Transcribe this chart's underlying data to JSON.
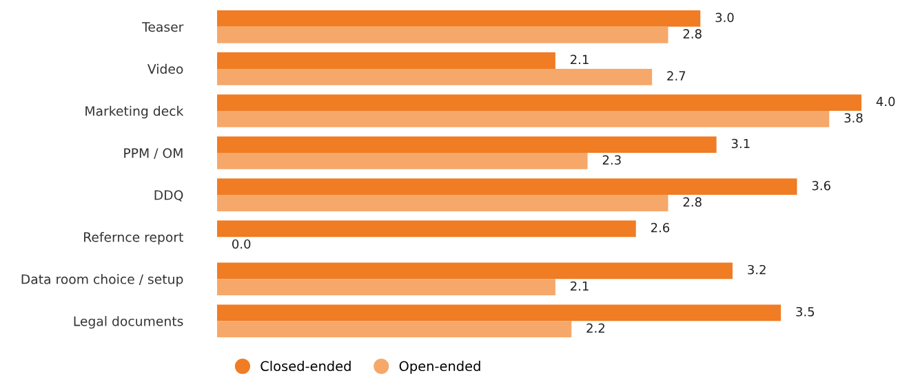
{
  "chart_data": {
    "type": "bar",
    "orientation": "horizontal",
    "categories": [
      "Teaser",
      "Video",
      "Marketing deck",
      "PPM / OM",
      "DDQ",
      "Refernce report",
      "Data room choice / setup",
      "Legal documents"
    ],
    "series": [
      {
        "name": "Closed-ended",
        "color": "#f07c24",
        "values": [
          3.0,
          2.1,
          4.0,
          3.1,
          3.6,
          2.6,
          3.2,
          3.5
        ],
        "value_labels": [
          "3.0",
          "2.1",
          "4.0",
          "3.1",
          "3.6",
          "2.6",
          "3.2",
          "3.5"
        ]
      },
      {
        "name": "Open-ended",
        "color": "#f6a86a",
        "values": [
          2.8,
          2.7,
          3.8,
          2.3,
          2.8,
          0.0,
          2.1,
          2.2
        ],
        "value_labels": [
          "2.8",
          "2.7",
          "3.8",
          "2.3",
          "2.8",
          "0.0",
          "2.1",
          "2.2"
        ]
      }
    ],
    "legend": "bottom",
    "grid": false
  }
}
